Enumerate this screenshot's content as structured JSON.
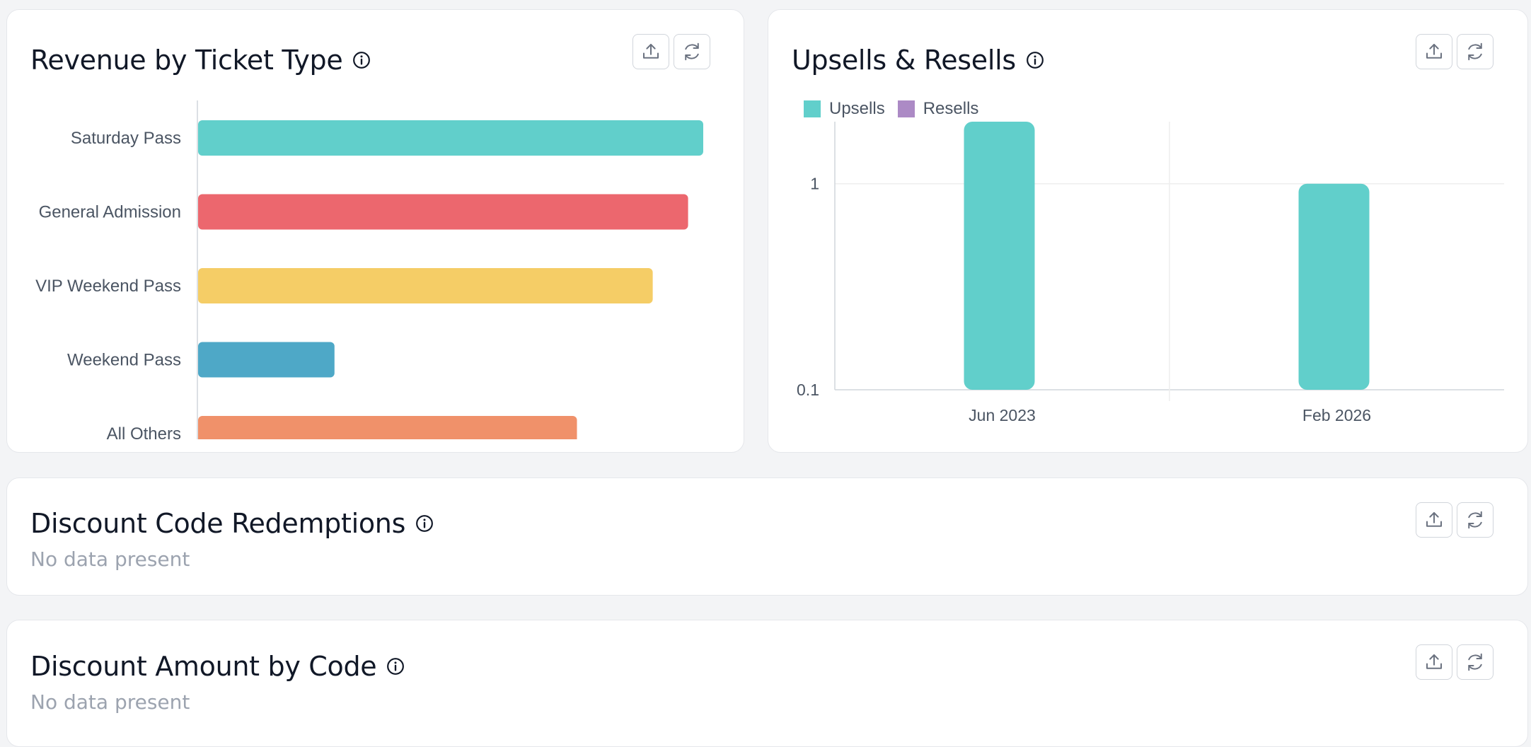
{
  "revenue_card": {
    "title": "Revenue by Ticket Type",
    "export_icon": "export-icon",
    "refresh_icon": "refresh-icon",
    "info_icon": "info-icon"
  },
  "upsells_card": {
    "title": "Upsells & Resells",
    "legend": [
      {
        "label": "Upsells",
        "color": "#61cfcb"
      },
      {
        "label": "Resells",
        "color": "#ac8ac5"
      }
    ]
  },
  "discount_redemptions_card": {
    "title": "Discount Code Redemptions",
    "empty_text": "No data present"
  },
  "discount_amount_card": {
    "title": "Discount Amount by Code",
    "empty_text": "No data present"
  },
  "chart_data": [
    {
      "type": "bar",
      "orientation": "horizontal",
      "title": "Revenue by Ticket Type",
      "categories": [
        "Saturday Pass",
        "General Admission",
        "VIP  Weekend Pass",
        "Weekend Pass",
        "All Others"
      ],
      "values": [
        100,
        97,
        90,
        27,
        75
      ],
      "colors": [
        "#61cfcb",
        "#ec676e",
        "#f5cd66",
        "#4ea8c7",
        "#f0916a"
      ],
      "xlim": [
        0,
        100
      ],
      "grid": false
    },
    {
      "type": "bar",
      "title": "Upsells & Resells",
      "categories": [
        "Jun 2023",
        "Feb 2026"
      ],
      "series": [
        {
          "name": "Upsells",
          "values": [
            2,
            1
          ],
          "color": "#61cfcb"
        },
        {
          "name": "Resells",
          "values": [
            0,
            0
          ],
          "color": "#ac8ac5"
        }
      ],
      "yscale": "log",
      "yticks": [
        "0.1",
        "1"
      ],
      "ylim": [
        0.1,
        2
      ],
      "legend": "top-left",
      "grid": true
    }
  ]
}
